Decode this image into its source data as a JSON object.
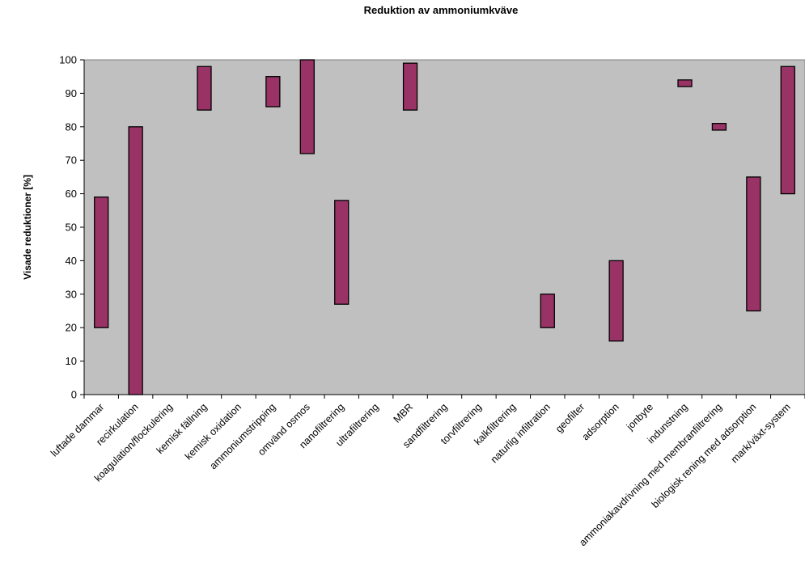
{
  "chart_data": {
    "type": "bar",
    "subtype": "floating-range",
    "title": "Reduktion av ammoniumkväve",
    "xlabel": "",
    "ylabel": "Visade reduktioner [%]",
    "ylim": [
      0,
      100
    ],
    "ytick_step": 10,
    "yticks": [
      "0",
      "10",
      "20",
      "30",
      "40",
      "50",
      "60",
      "70",
      "80",
      "90",
      "100"
    ],
    "grid": false,
    "plot_background": "#c0c0c0",
    "bar_color": "#993366",
    "categories": [
      "luftade dammar",
      "recirkulation",
      "koagulation/flockulering",
      "kemisk fällning",
      "kemisk oxidation",
      "ammoniumstripping",
      "omvänd osmos",
      "nanofiltrering",
      "ultrafiltrering",
      "MBR",
      "sandfiltrering",
      "torvfiltrering",
      "kalkfiltrering",
      "naturlig infiltration",
      "geofilter",
      "adsorption",
      "jonbyte",
      "indunstning",
      "ammoniakavdrivning med membranfiltrering",
      "biologisk rening med adsorption",
      "mark/växt-system"
    ],
    "ranges": [
      [
        20,
        59
      ],
      [
        0,
        80
      ],
      null,
      [
        85,
        98
      ],
      null,
      [
        86,
        95
      ],
      [
        72,
        100
      ],
      [
        27,
        58
      ],
      null,
      [
        85,
        99
      ],
      null,
      null,
      null,
      [
        20,
        30
      ],
      null,
      [
        16,
        40
      ],
      null,
      [
        92,
        94
      ],
      [
        79,
        81
      ],
      [
        25,
        65
      ],
      [
        60,
        98
      ]
    ]
  }
}
